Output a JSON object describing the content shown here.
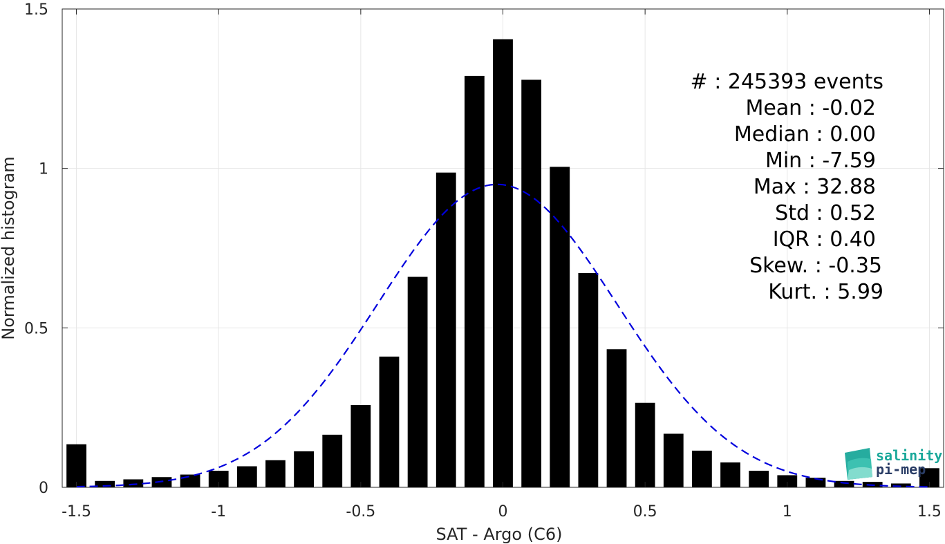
{
  "chart_data": {
    "type": "bar",
    "xlabel": "SAT - Argo (C6)",
    "ylabel": "Normalized histogram",
    "xlim": [
      -1.55,
      1.55
    ],
    "ylim": [
      0,
      1.5
    ],
    "xticks": [
      -1.5,
      -1,
      -0.5,
      0,
      0.5,
      1,
      1.5
    ],
    "xtick_labels": [
      "-1.5",
      "-1",
      "-0.5",
      "0",
      "0.5",
      "1",
      "1.5"
    ],
    "yticks": [
      0,
      0.5,
      1,
      1.5
    ],
    "ytick_labels": [
      "0",
      "0.5",
      "1",
      "1.5"
    ],
    "grid": true,
    "bar_width": 0.07,
    "bar_color": "#000000",
    "bins": [
      {
        "x": -1.5,
        "y": 0.135
      },
      {
        "x": -1.4,
        "y": 0.02
      },
      {
        "x": -1.3,
        "y": 0.025
      },
      {
        "x": -1.2,
        "y": 0.032
      },
      {
        "x": -1.1,
        "y": 0.04
      },
      {
        "x": -1.0,
        "y": 0.052
      },
      {
        "x": -0.9,
        "y": 0.066
      },
      {
        "x": -0.8,
        "y": 0.085
      },
      {
        "x": -0.7,
        "y": 0.113
      },
      {
        "x": -0.6,
        "y": 0.165
      },
      {
        "x": -0.5,
        "y": 0.258
      },
      {
        "x": -0.4,
        "y": 0.41
      },
      {
        "x": -0.3,
        "y": 0.66
      },
      {
        "x": -0.2,
        "y": 0.987
      },
      {
        "x": -0.1,
        "y": 1.29
      },
      {
        "x": 0.0,
        "y": 1.405
      },
      {
        "x": 0.1,
        "y": 1.278
      },
      {
        "x": 0.2,
        "y": 1.005
      },
      {
        "x": 0.3,
        "y": 0.672
      },
      {
        "x": 0.4,
        "y": 0.433
      },
      {
        "x": 0.5,
        "y": 0.265
      },
      {
        "x": 0.6,
        "y": 0.168
      },
      {
        "x": 0.7,
        "y": 0.115
      },
      {
        "x": 0.8,
        "y": 0.078
      },
      {
        "x": 0.9,
        "y": 0.052
      },
      {
        "x": 1.0,
        "y": 0.038
      },
      {
        "x": 1.1,
        "y": 0.03
      },
      {
        "x": 1.2,
        "y": 0.02
      },
      {
        "x": 1.3,
        "y": 0.017
      },
      {
        "x": 1.4,
        "y": 0.012
      },
      {
        "x": 1.5,
        "y": 0.06
      }
    ],
    "fit_curve": {
      "style": "dashed",
      "color": "#0000dd",
      "mean": -0.02,
      "peak": 0.95,
      "sigma": 0.42,
      "x_range": [
        -1.5,
        1.5
      ]
    }
  },
  "stats": {
    "events": "#  : 245393 events",
    "mean": "Mean : -0.02",
    "median": "Median : 0.00",
    "min": "Min : -7.59",
    "max": "Max : 32.88",
    "std": "Std : 0.52",
    "iqr": "IQR : 0.40",
    "skew": "Skew. : -0.35",
    "kurt": "Kurt. : 5.99"
  },
  "logo": {
    "line1": "salinity",
    "line2": "pi-mep"
  }
}
